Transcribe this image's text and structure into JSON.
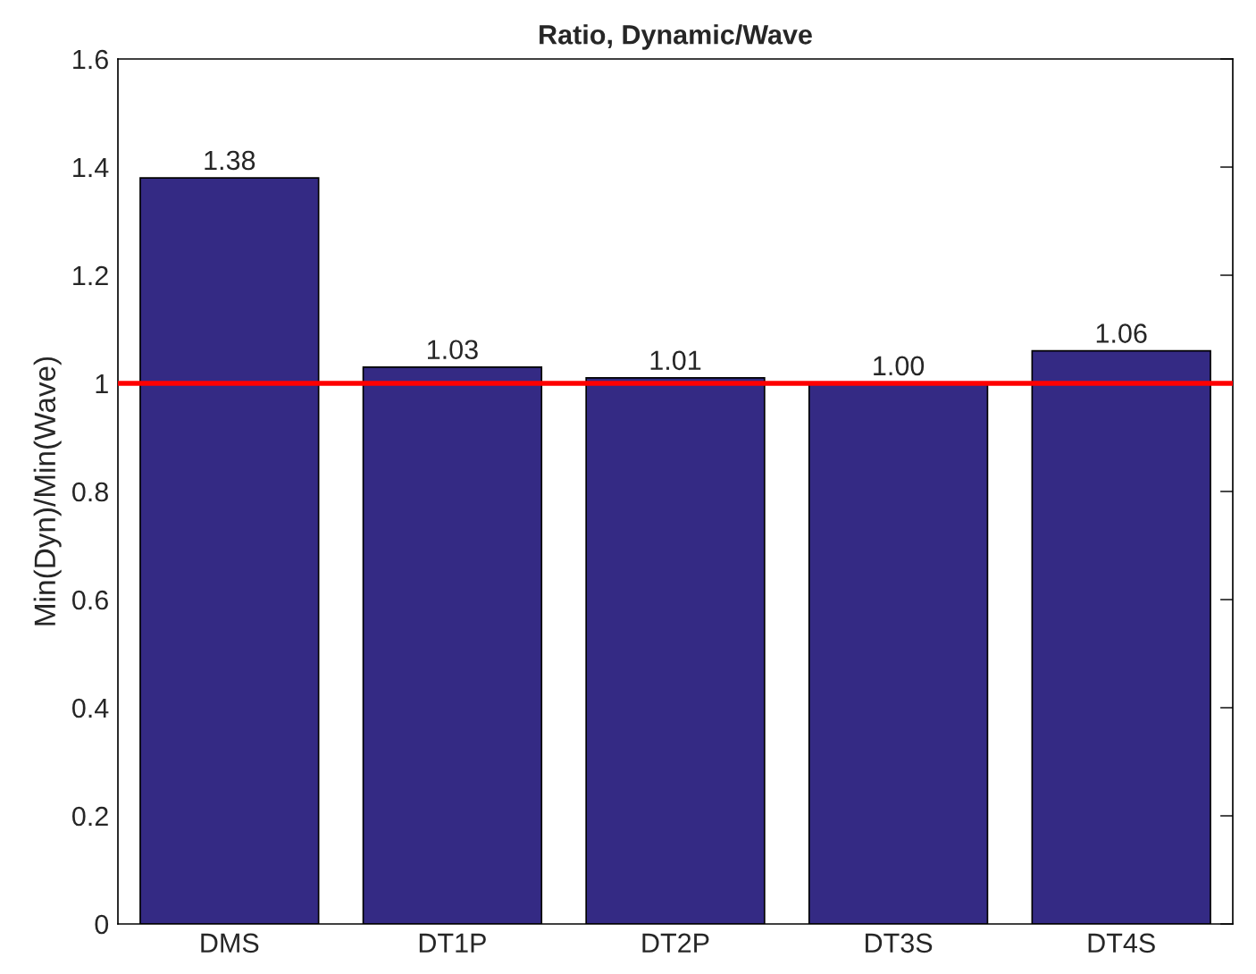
{
  "chart_data": {
    "type": "bar",
    "title": "Ratio, Dynamic/Wave",
    "ylabel": "Min(Dyn)/Min(Wave)",
    "categories": [
      "DMS",
      "DT1P",
      "DT2P",
      "DT3S",
      "DT4S"
    ],
    "values": [
      1.38,
      1.03,
      1.01,
      1.0,
      1.06
    ],
    "value_labels": [
      "1.38",
      "1.03",
      "1.01",
      "1.00",
      "1.06"
    ],
    "color": "#342a84",
    "ylim": [
      0,
      1.6
    ],
    "yticks": [
      0,
      0.2,
      0.4,
      0.6,
      0.8,
      1,
      1.2,
      1.4,
      1.6
    ],
    "ref_lines": [
      {
        "axis": "y",
        "value": 1,
        "color": "#ff0000"
      }
    ],
    "grid": false
  }
}
